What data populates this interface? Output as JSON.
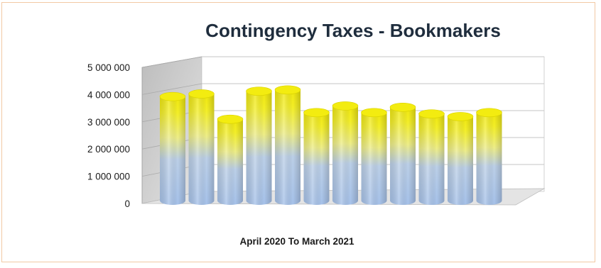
{
  "chart_data": {
    "type": "bar",
    "title": "Contingency Taxes - Bookmakers",
    "xlabel": "April 2020  To March 2021",
    "ylabel": "",
    "ylim": [
      0,
      5000000
    ],
    "yticks": [
      {
        "value": 0,
        "label": "0"
      },
      {
        "value": 1000000,
        "label": "1 000 000"
      },
      {
        "value": 2000000,
        "label": "2 000 000"
      },
      {
        "value": 3000000,
        "label": "3 000 000"
      },
      {
        "value": 4000000,
        "label": "4 000 000"
      },
      {
        "value": 5000000,
        "label": "5 000 000"
      }
    ],
    "values": [
      3900000,
      4000000,
      3050000,
      4100000,
      4150000,
      3300000,
      3550000,
      3300000,
      3500000,
      3250000,
      3150000,
      3300000
    ],
    "grid": true,
    "legend": "none",
    "style": "3d-cylinder",
    "colors": {
      "bar_top": "#f2ef1c",
      "bar_mid": "#f5f07a",
      "bar_bottom": "#a8c4ea",
      "wall": "#c8c8c8",
      "floor": "#e6e6e6",
      "grid": "#c0c0c0",
      "frame": "#f2c9a4"
    }
  }
}
